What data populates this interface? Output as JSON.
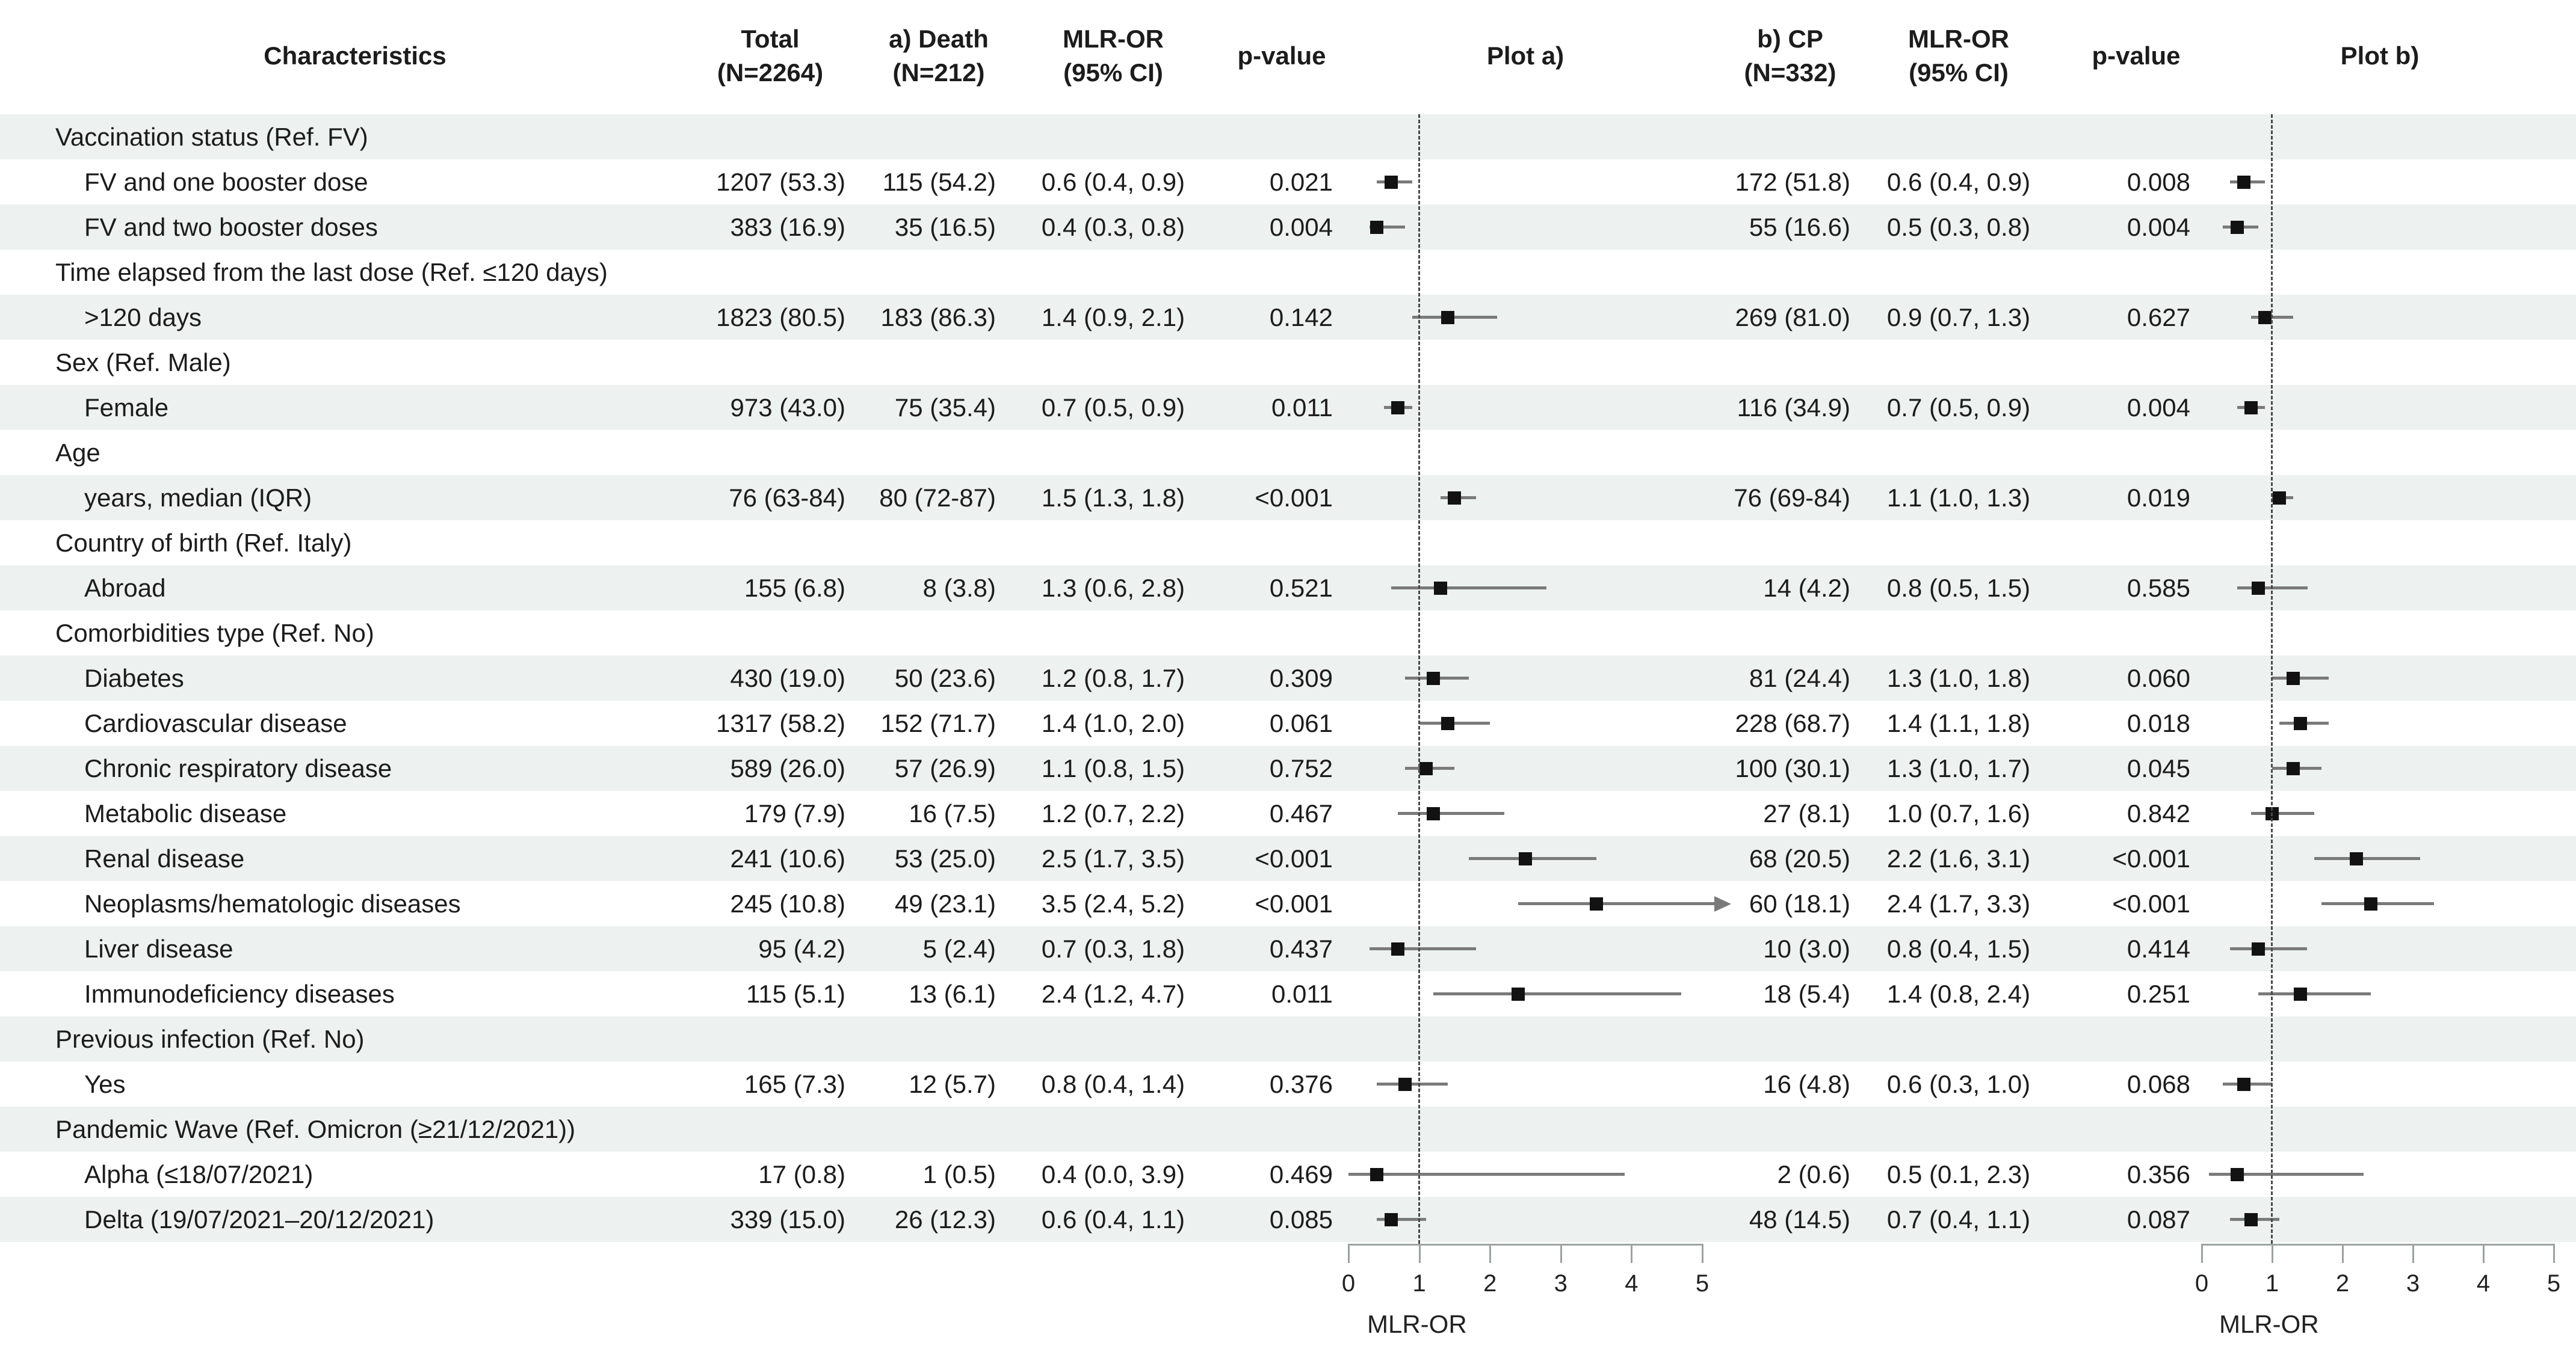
{
  "header": {
    "characteristics": "Characteristics",
    "total": {
      "line1": "Total",
      "line2": "(N=2264)"
    },
    "death": {
      "line1": "a) Death",
      "line2": "(N=212)"
    },
    "mlr_a": {
      "line1": "MLR-OR",
      "line2": "(95% CI)"
    },
    "pvalue_a": "p-value",
    "plot_a": "Plot a)",
    "cp": {
      "line1": "b) CP",
      "line2": "(N=332)"
    },
    "mlr_b": {
      "line1": "MLR-OR",
      "line2": "(95% CI)"
    },
    "pvalue_b": "p-value",
    "plot_b": "Plot b)"
  },
  "axis": {
    "min": 0,
    "max": 5,
    "ticks": [
      "0",
      "1",
      "2",
      "3",
      "4",
      "5"
    ],
    "label": "MLR-OR",
    "reference_line": 1
  },
  "colors": {
    "row_shade": "#edf1f0",
    "marker": "#121212",
    "ci_line": "#7a7a7a",
    "axis": "#9aa3a2",
    "reference_line": "#4a4a4a",
    "text": "#1c1c1c"
  },
  "rows": [
    {
      "type": "group",
      "label": "Vaccination status (Ref. FV)",
      "shaded": true
    },
    {
      "type": "item",
      "label": "FV and one booster dose",
      "total": "1207 (53.3)",
      "death": "115 (54.2)",
      "mlr_a": "0.6 (0.4, 0.9)",
      "p_a": "0.021",
      "plot_a": {
        "or": 0.6,
        "lo": 0.4,
        "hi": 0.9
      },
      "cp": "172 (51.8)",
      "mlr_b": "0.6 (0.4, 0.9)",
      "p_b": "0.008",
      "plot_b": {
        "or": 0.6,
        "lo": 0.4,
        "hi": 0.9
      },
      "shaded": false
    },
    {
      "type": "item",
      "label": "FV and two booster doses",
      "total": "383 (16.9)",
      "death": "35 (16.5)",
      "mlr_a": "0.4 (0.3, 0.8)",
      "p_a": "0.004",
      "plot_a": {
        "or": 0.4,
        "lo": 0.3,
        "hi": 0.8
      },
      "cp": "55 (16.6)",
      "mlr_b": "0.5 (0.3, 0.8)",
      "p_b": "0.004",
      "plot_b": {
        "or": 0.5,
        "lo": 0.3,
        "hi": 0.8
      },
      "shaded": true
    },
    {
      "type": "group",
      "label": "Time elapsed from the last dose (Ref. ≤120 days)",
      "shaded": false
    },
    {
      "type": "item",
      "label": ">120 days",
      "total": "1823 (80.5)",
      "death": "183 (86.3)",
      "mlr_a": "1.4 (0.9, 2.1)",
      "p_a": "0.142",
      "plot_a": {
        "or": 1.4,
        "lo": 0.9,
        "hi": 2.1
      },
      "cp": "269 (81.0)",
      "mlr_b": "0.9 (0.7, 1.3)",
      "p_b": "0.627",
      "plot_b": {
        "or": 0.9,
        "lo": 0.7,
        "hi": 1.3
      },
      "shaded": true
    },
    {
      "type": "group",
      "label": "Sex (Ref. Male)",
      "shaded": false
    },
    {
      "type": "item",
      "label": "Female",
      "total": "973 (43.0)",
      "death": "75 (35.4)",
      "mlr_a": "0.7 (0.5, 0.9)",
      "p_a": "0.011",
      "plot_a": {
        "or": 0.7,
        "lo": 0.5,
        "hi": 0.9
      },
      "cp": "116 (34.9)",
      "mlr_b": "0.7 (0.5, 0.9)",
      "p_b": "0.004",
      "plot_b": {
        "or": 0.7,
        "lo": 0.5,
        "hi": 0.9
      },
      "shaded": true
    },
    {
      "type": "group",
      "label": "Age",
      "shaded": false
    },
    {
      "type": "item",
      "label": "years, median (IQR)",
      "total": "76 (63-84)",
      "death": "80 (72-87)",
      "mlr_a": "1.5 (1.3, 1.8)",
      "p_a": "<0.001",
      "plot_a": {
        "or": 1.5,
        "lo": 1.3,
        "hi": 1.8
      },
      "cp": "76 (69-84)",
      "mlr_b": "1.1 (1.0, 1.3)",
      "p_b": "0.019",
      "plot_b": {
        "or": 1.1,
        "lo": 1.0,
        "hi": 1.3
      },
      "shaded": true
    },
    {
      "type": "group",
      "label": "Country of birth (Ref. Italy)",
      "shaded": false
    },
    {
      "type": "item",
      "label": "Abroad",
      "total": "155 (6.8)",
      "death": "8 (3.8)",
      "mlr_a": "1.3 (0.6, 2.8)",
      "p_a": "0.521",
      "plot_a": {
        "or": 1.3,
        "lo": 0.6,
        "hi": 2.8
      },
      "cp": "14 (4.2)",
      "mlr_b": "0.8 (0.5, 1.5)",
      "p_b": "0.585",
      "plot_b": {
        "or": 0.8,
        "lo": 0.5,
        "hi": 1.5
      },
      "shaded": true
    },
    {
      "type": "group",
      "label": "Comorbidities type (Ref. No)",
      "shaded": false
    },
    {
      "type": "item",
      "label": "Diabetes",
      "total": "430 (19.0)",
      "death": "50 (23.6)",
      "mlr_a": "1.2 (0.8, 1.7)",
      "p_a": "0.309",
      "plot_a": {
        "or": 1.2,
        "lo": 0.8,
        "hi": 1.7
      },
      "cp": "81 (24.4)",
      "mlr_b": "1.3 (1.0, 1.8)",
      "p_b": "0.060",
      "plot_b": {
        "or": 1.3,
        "lo": 1.0,
        "hi": 1.8
      },
      "shaded": true
    },
    {
      "type": "item",
      "label": "Cardiovascular disease",
      "total": "1317 (58.2)",
      "death": "152 (71.7)",
      "mlr_a": "1.4 (1.0, 2.0)",
      "p_a": "0.061",
      "plot_a": {
        "or": 1.4,
        "lo": 1.0,
        "hi": 2.0
      },
      "cp": "228 (68.7)",
      "mlr_b": "1.4 (1.1, 1.8)",
      "p_b": "0.018",
      "plot_b": {
        "or": 1.4,
        "lo": 1.1,
        "hi": 1.8
      },
      "shaded": false
    },
    {
      "type": "item",
      "label": "Chronic respiratory disease",
      "total": "589 (26.0)",
      "death": "57 (26.9)",
      "mlr_a": "1.1 (0.8, 1.5)",
      "p_a": "0.752",
      "plot_a": {
        "or": 1.1,
        "lo": 0.8,
        "hi": 1.5
      },
      "cp": "100 (30.1)",
      "mlr_b": "1.3 (1.0, 1.7)",
      "p_b": "0.045",
      "plot_b": {
        "or": 1.3,
        "lo": 1.0,
        "hi": 1.7
      },
      "shaded": true
    },
    {
      "type": "item",
      "label": "Metabolic disease",
      "total": "179 (7.9)",
      "death": "16 (7.5)",
      "mlr_a": "1.2 (0.7, 2.2)",
      "p_a": "0.467",
      "plot_a": {
        "or": 1.2,
        "lo": 0.7,
        "hi": 2.2
      },
      "cp": "27 (8.1)",
      "mlr_b": "1.0 (0.7, 1.6)",
      "p_b": "0.842",
      "plot_b": {
        "or": 1.0,
        "lo": 0.7,
        "hi": 1.6
      },
      "shaded": false
    },
    {
      "type": "item",
      "label": "Renal disease",
      "total": "241 (10.6)",
      "death": "53 (25.0)",
      "mlr_a": "2.5 (1.7, 3.5)",
      "p_a": "<0.001",
      "plot_a": {
        "or": 2.5,
        "lo": 1.7,
        "hi": 3.5
      },
      "cp": "68 (20.5)",
      "mlr_b": "2.2 (1.6, 3.1)",
      "p_b": "<0.001",
      "plot_b": {
        "or": 2.2,
        "lo": 1.6,
        "hi": 3.1
      },
      "shaded": true
    },
    {
      "type": "item",
      "label": "Neoplasms/hematologic diseases",
      "total": "245 (10.8)",
      "death": "49 (23.1)",
      "mlr_a": "3.5 (2.4, 5.2)",
      "p_a": "<0.001",
      "plot_a": {
        "or": 3.5,
        "lo": 2.4,
        "hi": 5.2
      },
      "cp": "60 (18.1)",
      "mlr_b": "2.4 (1.7, 3.3)",
      "p_b": "<0.001",
      "plot_b": {
        "or": 2.4,
        "lo": 1.7,
        "hi": 3.3
      },
      "shaded": false
    },
    {
      "type": "item",
      "label": "Liver disease",
      "total": "95 (4.2)",
      "death": "5 (2.4)",
      "mlr_a": "0.7 (0.3, 1.8)",
      "p_a": "0.437",
      "plot_a": {
        "or": 0.7,
        "lo": 0.3,
        "hi": 1.8
      },
      "cp": "10 (3.0)",
      "mlr_b": "0.8 (0.4, 1.5)",
      "p_b": "0.414",
      "plot_b": {
        "or": 0.8,
        "lo": 0.4,
        "hi": 1.5
      },
      "shaded": true
    },
    {
      "type": "item",
      "label": "Immunodeficiency diseases",
      "total": "115 (5.1)",
      "death": "13 (6.1)",
      "mlr_a": "2.4 (1.2, 4.7)",
      "p_a": "0.011",
      "plot_a": {
        "or": 2.4,
        "lo": 1.2,
        "hi": 4.7
      },
      "cp": "18 (5.4)",
      "mlr_b": "1.4 (0.8, 2.4)",
      "p_b": "0.251",
      "plot_b": {
        "or": 1.4,
        "lo": 0.8,
        "hi": 2.4
      },
      "shaded": false
    },
    {
      "type": "group",
      "label": "Previous infection (Ref. No)",
      "shaded": true
    },
    {
      "type": "item",
      "label": "Yes",
      "total": "165 (7.3)",
      "death": "12 (5.7)",
      "mlr_a": "0.8 (0.4, 1.4)",
      "p_a": "0.376",
      "plot_a": {
        "or": 0.8,
        "lo": 0.4,
        "hi": 1.4
      },
      "cp": "16 (4.8)",
      "mlr_b": "0.6 (0.3, 1.0)",
      "p_b": "0.068",
      "plot_b": {
        "or": 0.6,
        "lo": 0.3,
        "hi": 1.0
      },
      "shaded": false
    },
    {
      "type": "group",
      "label": "Pandemic Wave (Ref. Omicron (≥21/12/2021))",
      "shaded": true
    },
    {
      "type": "item",
      "label": "Alpha (≤18/07/2021)",
      "total": "17 (0.8)",
      "death": "1 (0.5)",
      "mlr_a": "0.4 (0.0, 3.9)",
      "p_a": "0.469",
      "plot_a": {
        "or": 0.4,
        "lo": 0.0,
        "hi": 3.9
      },
      "cp": "2 (0.6)",
      "mlr_b": "0.5 (0.1, 2.3)",
      "p_b": "0.356",
      "plot_b": {
        "or": 0.5,
        "lo": 0.1,
        "hi": 2.3
      },
      "shaded": false
    },
    {
      "type": "item",
      "label": "Delta (19/07/2021–20/12/2021)",
      "total": "339 (15.0)",
      "death": "26 (12.3)",
      "mlr_a": "0.6 (0.4, 1.1)",
      "p_a": "0.085",
      "plot_a": {
        "or": 0.6,
        "lo": 0.4,
        "hi": 1.1
      },
      "cp": "48 (14.5)",
      "mlr_b": "0.7 (0.4, 1.1)",
      "p_b": "0.087",
      "plot_b": {
        "or": 0.7,
        "lo": 0.4,
        "hi": 1.1
      },
      "shaded": true
    }
  ],
  "chart_data": [
    {
      "type": "scatter",
      "subtype": "forest-plot",
      "title": "Plot a) — a) Death (N=212), MLR-OR (95% CI)",
      "xlabel": "MLR-OR",
      "xlim": [
        0,
        5
      ],
      "xticks": [
        0,
        1,
        2,
        3,
        4,
        5
      ],
      "reference_line": 1,
      "grid": false,
      "points": [
        {
          "label": "FV and one booster dose",
          "or": 0.6,
          "ci_low": 0.4,
          "ci_high": 0.9,
          "p_value": "0.021"
        },
        {
          "label": "FV and two booster doses",
          "or": 0.4,
          "ci_low": 0.3,
          "ci_high": 0.8,
          "p_value": "0.004"
        },
        {
          "label": ">120 days",
          "or": 1.4,
          "ci_low": 0.9,
          "ci_high": 2.1,
          "p_value": "0.142"
        },
        {
          "label": "Female",
          "or": 0.7,
          "ci_low": 0.5,
          "ci_high": 0.9,
          "p_value": "0.011"
        },
        {
          "label": "Age, years median (IQR)",
          "or": 1.5,
          "ci_low": 1.3,
          "ci_high": 1.8,
          "p_value": "<0.001"
        },
        {
          "label": "Abroad",
          "or": 1.3,
          "ci_low": 0.6,
          "ci_high": 2.8,
          "p_value": "0.521"
        },
        {
          "label": "Diabetes",
          "or": 1.2,
          "ci_low": 0.8,
          "ci_high": 1.7,
          "p_value": "0.309"
        },
        {
          "label": "Cardiovascular disease",
          "or": 1.4,
          "ci_low": 1.0,
          "ci_high": 2.0,
          "p_value": "0.061"
        },
        {
          "label": "Chronic respiratory disease",
          "or": 1.1,
          "ci_low": 0.8,
          "ci_high": 1.5,
          "p_value": "0.752"
        },
        {
          "label": "Metabolic disease",
          "or": 1.2,
          "ci_low": 0.7,
          "ci_high": 2.2,
          "p_value": "0.467"
        },
        {
          "label": "Renal disease",
          "or": 2.5,
          "ci_low": 1.7,
          "ci_high": 3.5,
          "p_value": "<0.001"
        },
        {
          "label": "Neoplasms/hematologic diseases",
          "or": 3.5,
          "ci_low": 2.4,
          "ci_high": 5.2,
          "p_value": "<0.001"
        },
        {
          "label": "Liver disease",
          "or": 0.7,
          "ci_low": 0.3,
          "ci_high": 1.8,
          "p_value": "0.437"
        },
        {
          "label": "Immunodeficiency diseases",
          "or": 2.4,
          "ci_low": 1.2,
          "ci_high": 4.7,
          "p_value": "0.011"
        },
        {
          "label": "Previous infection: Yes",
          "or": 0.8,
          "ci_low": 0.4,
          "ci_high": 1.4,
          "p_value": "0.376"
        },
        {
          "label": "Alpha (≤18/07/2021)",
          "or": 0.4,
          "ci_low": 0.0,
          "ci_high": 3.9,
          "p_value": "0.469"
        },
        {
          "label": "Delta (19/07/2021–20/12/2021)",
          "or": 0.6,
          "ci_low": 0.4,
          "ci_high": 1.1,
          "p_value": "0.085"
        }
      ]
    },
    {
      "type": "scatter",
      "subtype": "forest-plot",
      "title": "Plot b) — b) CP (N=332), MLR-OR (95% CI)",
      "xlabel": "MLR-OR",
      "xlim": [
        0,
        5
      ],
      "xticks": [
        0,
        1,
        2,
        3,
        4,
        5
      ],
      "reference_line": 1,
      "grid": false,
      "points": [
        {
          "label": "FV and one booster dose",
          "or": 0.6,
          "ci_low": 0.4,
          "ci_high": 0.9,
          "p_value": "0.008"
        },
        {
          "label": "FV and two booster doses",
          "or": 0.5,
          "ci_low": 0.3,
          "ci_high": 0.8,
          "p_value": "0.004"
        },
        {
          "label": ">120 days",
          "or": 0.9,
          "ci_low": 0.7,
          "ci_high": 1.3,
          "p_value": "0.627"
        },
        {
          "label": "Female",
          "or": 0.7,
          "ci_low": 0.5,
          "ci_high": 0.9,
          "p_value": "0.004"
        },
        {
          "label": "Age, years median (IQR)",
          "or": 1.1,
          "ci_low": 1.0,
          "ci_high": 1.3,
          "p_value": "0.019"
        },
        {
          "label": "Abroad",
          "or": 0.8,
          "ci_low": 0.5,
          "ci_high": 1.5,
          "p_value": "0.585"
        },
        {
          "label": "Diabetes",
          "or": 1.3,
          "ci_low": 1.0,
          "ci_high": 1.8,
          "p_value": "0.060"
        },
        {
          "label": "Cardiovascular disease",
          "or": 1.4,
          "ci_low": 1.1,
          "ci_high": 1.8,
          "p_value": "0.018"
        },
        {
          "label": "Chronic respiratory disease",
          "or": 1.3,
          "ci_low": 1.0,
          "ci_high": 1.7,
          "p_value": "0.045"
        },
        {
          "label": "Metabolic disease",
          "or": 1.0,
          "ci_low": 0.7,
          "ci_high": 1.6,
          "p_value": "0.842"
        },
        {
          "label": "Renal disease",
          "or": 2.2,
          "ci_low": 1.6,
          "ci_high": 3.1,
          "p_value": "<0.001"
        },
        {
          "label": "Neoplasms/hematologic diseases",
          "or": 2.4,
          "ci_low": 1.7,
          "ci_high": 3.3,
          "p_value": "<0.001"
        },
        {
          "label": "Liver disease",
          "or": 0.8,
          "ci_low": 0.4,
          "ci_high": 1.5,
          "p_value": "0.414"
        },
        {
          "label": "Immunodeficiency diseases",
          "or": 1.4,
          "ci_low": 0.8,
          "ci_high": 2.4,
          "p_value": "0.251"
        },
        {
          "label": "Previous infection: Yes",
          "or": 0.6,
          "ci_low": 0.3,
          "ci_high": 1.0,
          "p_value": "0.068"
        },
        {
          "label": "Alpha (≤18/07/2021)",
          "or": 0.5,
          "ci_low": 0.1,
          "ci_high": 2.3,
          "p_value": "0.356"
        },
        {
          "label": "Delta (19/07/2021–20/12/2021)",
          "or": 0.7,
          "ci_low": 0.4,
          "ci_high": 1.1,
          "p_value": "0.087"
        }
      ]
    }
  ]
}
